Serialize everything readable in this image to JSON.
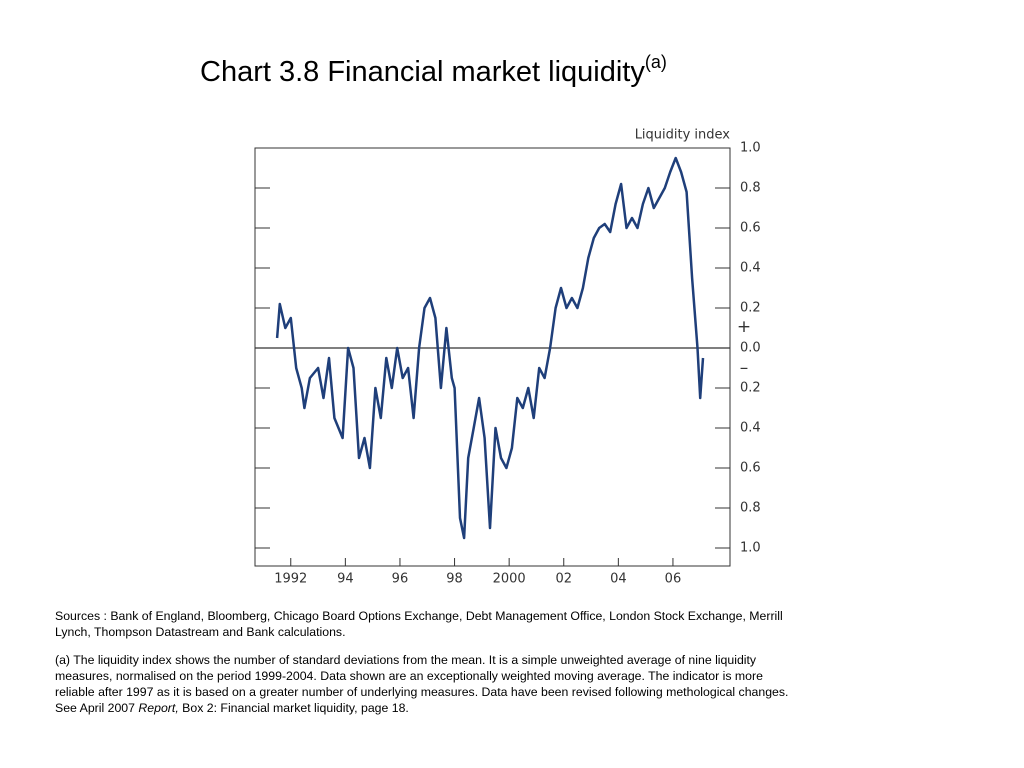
{
  "chart_data": {
    "type": "line",
    "title": "Chart 3.8  Financial market liquidity",
    "title_superscript": "(a)",
    "y_label": "Liquidity index",
    "sign_labels": [
      "+",
      "–"
    ],
    "xlim": [
      1991.19,
      2008.59
    ],
    "xticks": [
      {
        "value": 1992.5,
        "label": "1992"
      },
      {
        "value": 1994.5,
        "label": "94"
      },
      {
        "value": 1996.5,
        "label": "96"
      },
      {
        "value": 1998.5,
        "label": "98"
      },
      {
        "value": 2000.5,
        "label": "2000"
      },
      {
        "value": 2002.5,
        "label": "02"
      },
      {
        "value": 2004.5,
        "label": "04"
      },
      {
        "value": 2006.5,
        "label": "06"
      }
    ],
    "ylim": [
      -1,
      1
    ],
    "yticks": [
      {
        "value": 1,
        "label": "1.0"
      },
      0.8,
      0.6,
      0.4,
      0.2,
      {
        "value": 0,
        "label": "0.0"
      },
      {
        "value": -0.2,
        "label": "0.2"
      },
      {
        "value": -0.4,
        "label": "0.4"
      },
      {
        "value": -0.6,
        "label": "0.6"
      },
      {
        "value": -0.8,
        "label": "0.8"
      },
      {
        "value": -1,
        "label": "1.0"
      }
    ],
    "zero_line": true,
    "color": "#1f3f7a",
    "x": [
      1992.0,
      1992.1,
      1992.3,
      1992.5,
      1992.7,
      1992.9,
      1993.0,
      1993.2,
      1993.5,
      1993.7,
      1993.9,
      1994.1,
      1994.4,
      1994.6,
      1994.8,
      1995.0,
      1995.2,
      1995.4,
      1995.6,
      1995.8,
      1996.0,
      1996.2,
      1996.4,
      1996.6,
      1996.8,
      1997.0,
      1997.2,
      1997.4,
      1997.6,
      1997.8,
      1998.0,
      1998.2,
      1998.4,
      1998.5,
      1998.7,
      1998.85,
      1999.0,
      1999.2,
      1999.4,
      1999.6,
      1999.8,
      2000.0,
      2000.2,
      2000.4,
      2000.6,
      2000.8,
      2001.0,
      2001.2,
      2001.4,
      2001.6,
      2001.8,
      2002.0,
      2002.2,
      2002.4,
      2002.6,
      2002.8,
      2003.0,
      2003.2,
      2003.4,
      2003.6,
      2003.8,
      2004.0,
      2004.2,
      2004.4,
      2004.6,
      2004.8,
      2005.0,
      2005.2,
      2005.4,
      2005.6,
      2005.8,
      2006.0,
      2006.2,
      2006.4,
      2006.6,
      2006.8,
      2007.0,
      2007.2,
      2007.4,
      2007.5,
      2007.6
    ],
    "values": [
      0.05,
      0.22,
      0.1,
      0.15,
      -0.1,
      -0.2,
      -0.3,
      -0.15,
      -0.1,
      -0.25,
      -0.05,
      -0.35,
      -0.45,
      0.0,
      -0.1,
      -0.55,
      -0.45,
      -0.6,
      -0.2,
      -0.35,
      -0.05,
      -0.2,
      0.0,
      -0.15,
      -0.1,
      -0.35,
      0.0,
      0.2,
      0.25,
      0.15,
      -0.2,
      0.1,
      -0.15,
      -0.2,
      -0.85,
      -0.95,
      -0.55,
      -0.4,
      -0.25,
      -0.45,
      -0.9,
      -0.4,
      -0.55,
      -0.6,
      -0.5,
      -0.25,
      -0.3,
      -0.2,
      -0.35,
      -0.1,
      -0.15,
      0.0,
      0.2,
      0.3,
      0.2,
      0.25,
      0.2,
      0.3,
      0.45,
      0.55,
      0.6,
      0.62,
      0.58,
      0.72,
      0.82,
      0.6,
      0.65,
      0.6,
      0.72,
      0.8,
      0.7,
      0.75,
      0.8,
      0.88,
      0.95,
      0.88,
      0.78,
      0.35,
      0.0,
      -0.25,
      -0.05
    ],
    "sources": "Sources : Bank of England, Bloomberg, Chicago Board Options Exchange, Debt Management Office, London Stock Exchange, Merrill Lynch, Thompson Datastream and Bank calculations.",
    "notes": [
      "(a) The liquidity index shows the number of standard deviations from the mean.  It is a simple unweighted average of nine liquidity measures, normalised on the period 1999-2004. Data shown are an exceptionally weighted moving average. The indicator is more reliable after 1997 as it is based on a greater number of underlying measures.  Data have been revised following methological changes.  See April 2007 ",
      "Report,",
      " Box 2: Financial market liquidity, page 18."
    ]
  }
}
